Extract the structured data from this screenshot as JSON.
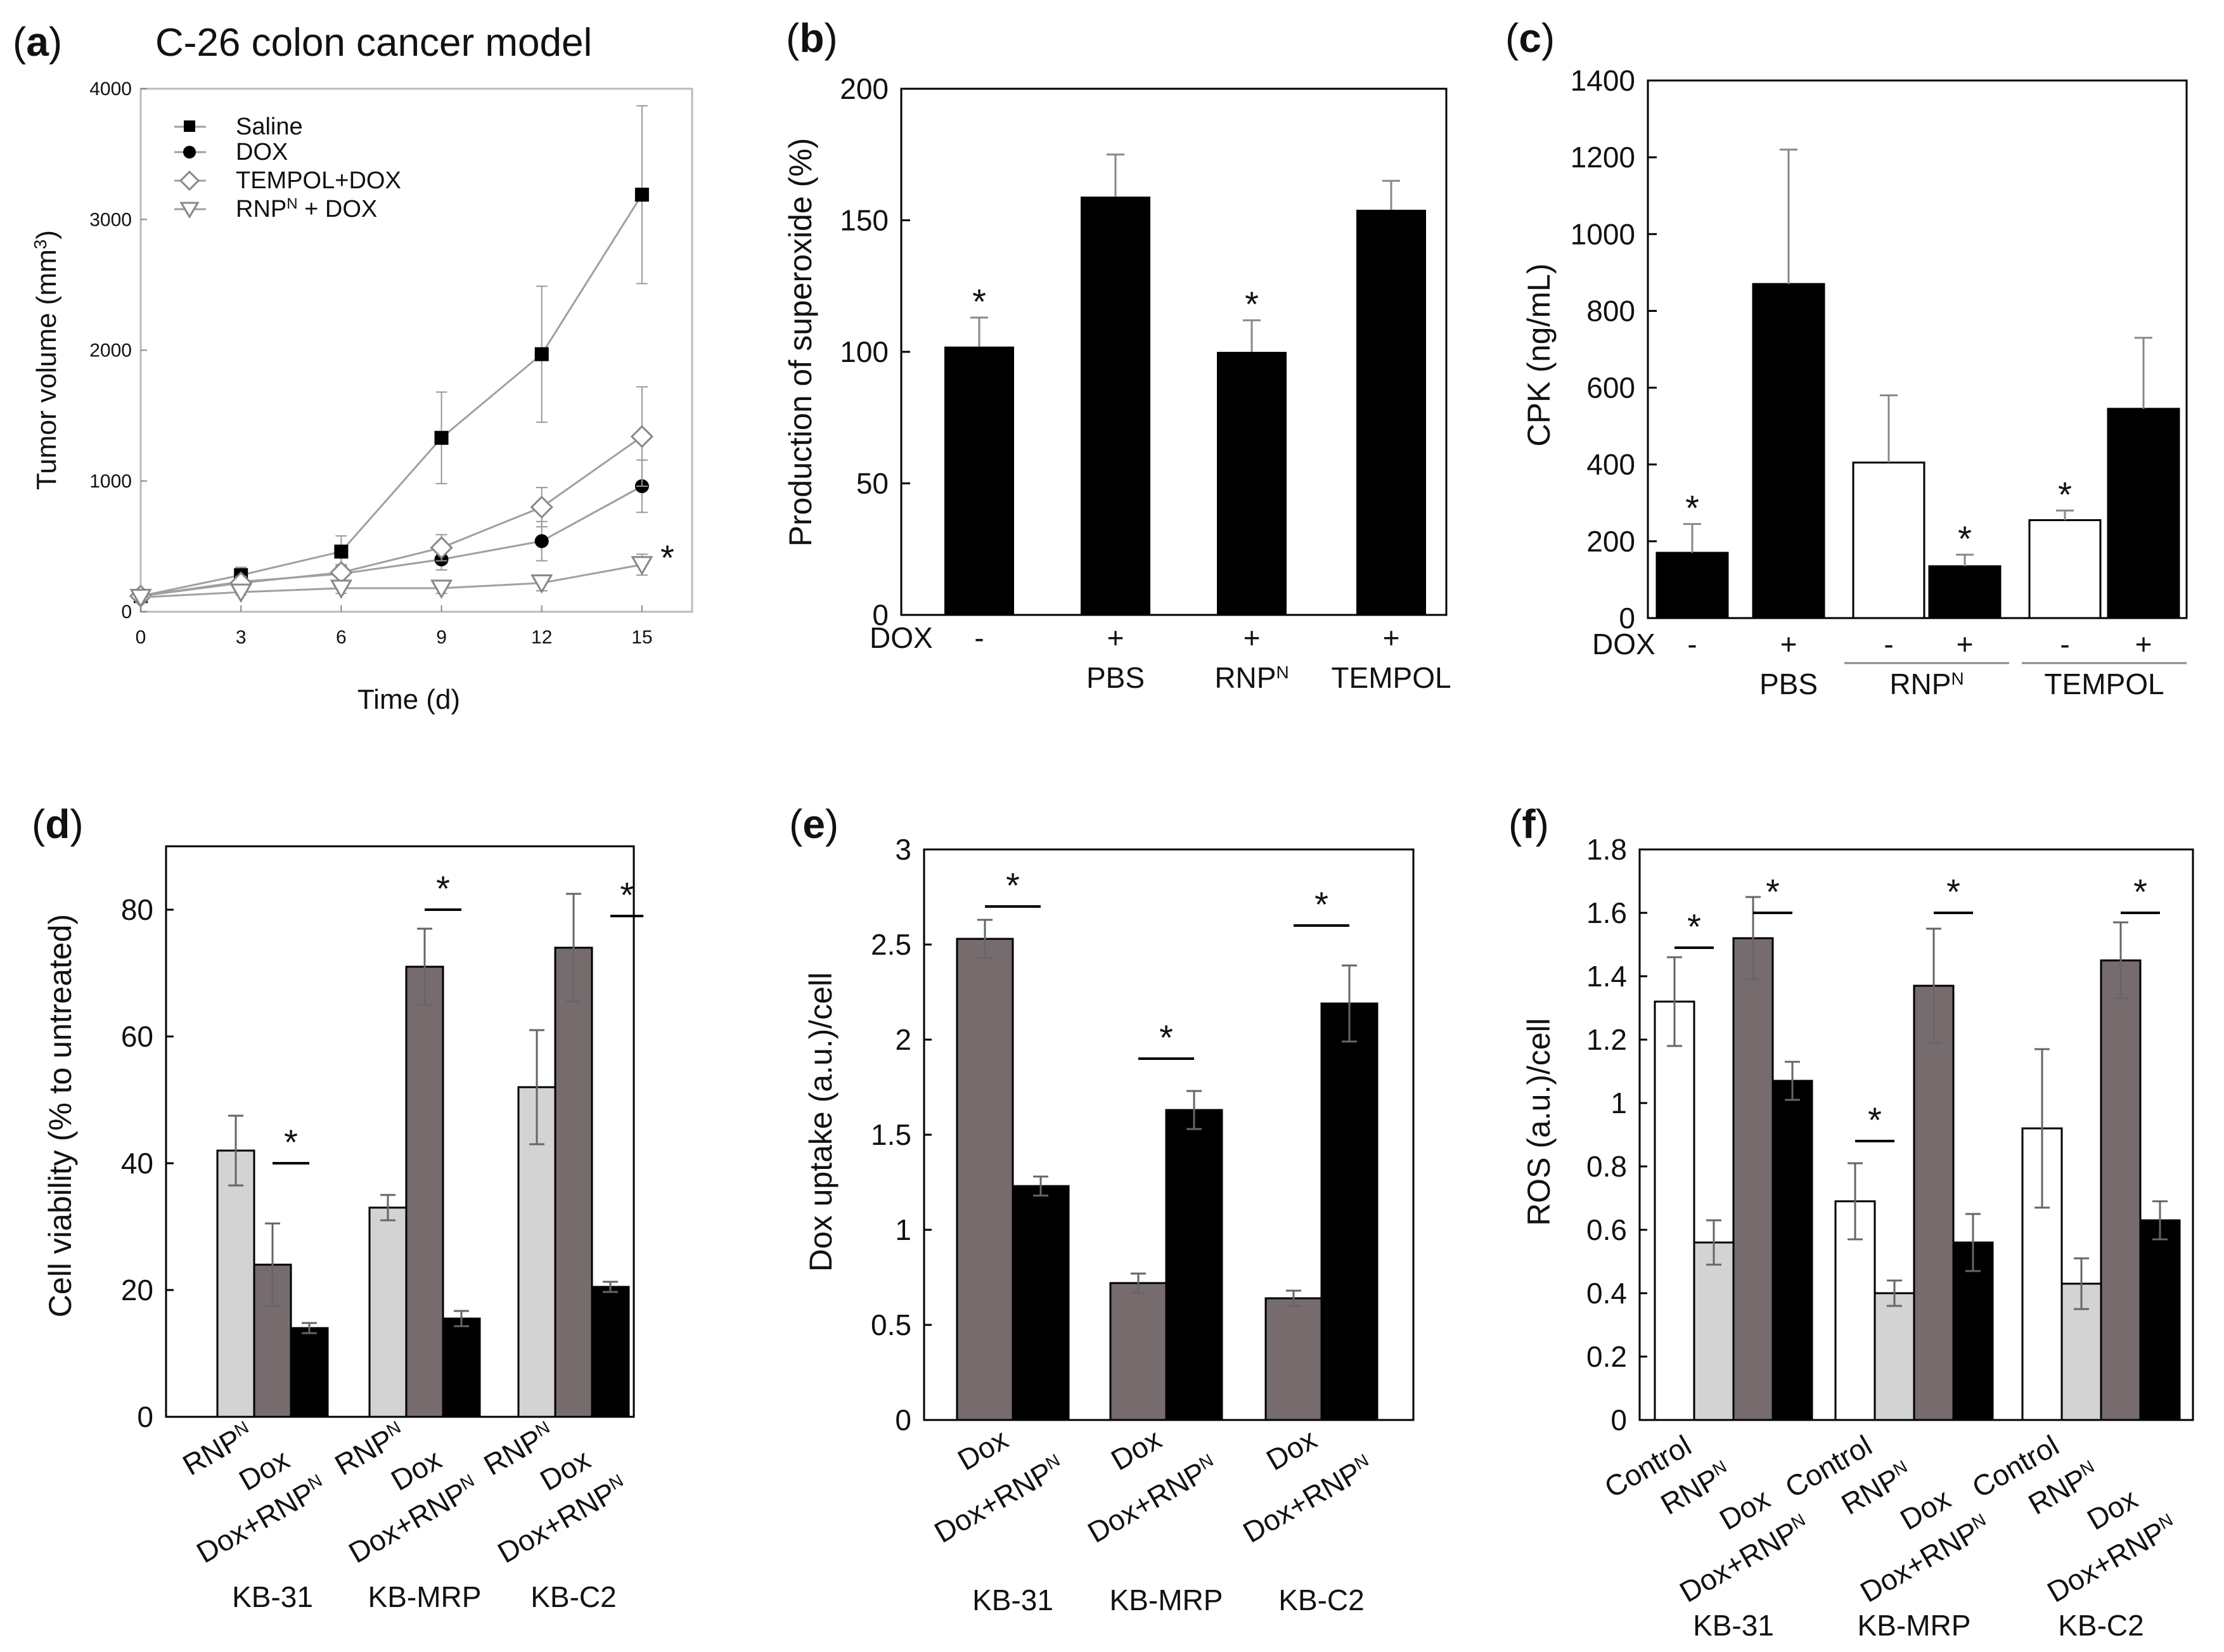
{
  "colors": {
    "black": "#000000",
    "dark_gray": "#766c6e",
    "light_gray": "#d3d3d3",
    "white": "#ffffff",
    "line": "#a0a0a0"
  },
  "panels": {
    "a": {
      "label": "a"
    },
    "b": {
      "label": "b"
    },
    "c": {
      "label": "c"
    },
    "d": {
      "label": "d"
    },
    "e": {
      "label": "e"
    },
    "f": {
      "label": "f"
    }
  },
  "chart_data": [
    {
      "id": "a",
      "type": "line",
      "title": "C-26 colon cancer model",
      "xlabel": "Time (d)",
      "ylabel_main": "Tumor volume (mm",
      "ylabel_sup": "3",
      "ylabel_close": ")",
      "xlim": [
        0,
        16.5
      ],
      "ylim": [
        0,
        4000
      ],
      "xticks": [
        0,
        3,
        6,
        9,
        12,
        15
      ],
      "yticks": [
        0,
        1000,
        2000,
        3000,
        4000
      ],
      "star_label": "*",
      "series": [
        {
          "name": "Saline",
          "marker": "square",
          "x": [
            0,
            3,
            6,
            9,
            12,
            15
          ],
          "y": [
            120,
            280,
            460,
            1330,
            1970,
            3190
          ],
          "err": [
            30,
            60,
            120,
            350,
            520,
            680
          ]
        },
        {
          "name": "DOX",
          "marker": "circle",
          "x": [
            0,
            3,
            6,
            9,
            12,
            15
          ],
          "y": [
            120,
            230,
            290,
            400,
            540,
            960
          ],
          "err": [
            20,
            40,
            60,
            80,
            150,
            200
          ]
        },
        {
          "name": "TEMPOL+DOX",
          "marker": "diamond",
          "x": [
            0,
            3,
            6,
            9,
            12,
            15
          ],
          "y": [
            120,
            220,
            300,
            490,
            800,
            1340
          ],
          "err": [
            20,
            40,
            60,
            100,
            150,
            380
          ]
        },
        {
          "name_main": "RNP",
          "name_sup": "N",
          "name_rest": " + DOX",
          "marker": "triangle",
          "x": [
            0,
            3,
            6,
            9,
            12,
            15
          ],
          "y": [
            110,
            150,
            180,
            180,
            220,
            360
          ],
          "err": [
            20,
            20,
            40,
            40,
            60,
            80
          ]
        }
      ]
    },
    {
      "id": "b",
      "type": "bar",
      "ylabel": "Production of superoxide (%)",
      "ylim": [
        0,
        200
      ],
      "yticks": [
        0,
        50,
        100,
        150,
        200
      ],
      "dox_label": "DOX",
      "categories": [
        "-",
        "+",
        "+",
        "+"
      ],
      "sublabels": [
        {
          "main": "",
          "sup": ""
        },
        {
          "main": "PBS",
          "sup": ""
        },
        {
          "main": "RNP",
          "sup": "N"
        },
        {
          "main": "TEMPOL",
          "sup": ""
        }
      ],
      "values": [
        102,
        159,
        100,
        154
      ],
      "errors": [
        11,
        16,
        12,
        11
      ],
      "stars": [
        "*",
        "",
        "*",
        ""
      ]
    },
    {
      "id": "c",
      "type": "bar",
      "ylabel": "CPK (ng/mL)",
      "ylim": [
        0,
        1400
      ],
      "yticks": [
        0,
        200,
        400,
        600,
        800,
        1000,
        1200,
        1400
      ],
      "dox_label": "DOX",
      "categories": [
        "-",
        "+",
        "-",
        "+",
        "-",
        "+"
      ],
      "values": [
        170,
        870,
        405,
        135,
        255,
        545
      ],
      "errors": [
        75,
        350,
        175,
        30,
        25,
        185
      ],
      "fills": [
        "black",
        "black",
        "white",
        "black",
        "white",
        "black"
      ],
      "stars": [
        "*",
        "",
        "",
        "*",
        "*",
        ""
      ],
      "groups": [
        {
          "main": "PBS",
          "sup": "",
          "underline": false
        },
        {
          "main": "RNP",
          "sup": "N",
          "underline": true
        },
        {
          "main": "TEMPOL",
          "sup": "",
          "underline": true
        }
      ]
    },
    {
      "id": "d",
      "type": "bar",
      "ylabel": "Cell viability (% to untreated)",
      "ylim": [
        0,
        90
      ],
      "yticks": [
        0,
        20,
        40,
        60,
        80
      ],
      "groups": [
        "KB-31",
        "KB-MRP",
        "KB-C2"
      ],
      "series": [
        {
          "label_main": "RNP",
          "label_sup": "N",
          "label_rest": "",
          "fill": "light_gray",
          "values": [
            42,
            33,
            52
          ],
          "errors": [
            5.5,
            2,
            9
          ]
        },
        {
          "label_main": "Dox",
          "label_sup": "",
          "label_rest": "",
          "fill": "dark_gray",
          "values": [
            24,
            71,
            74
          ],
          "errors": [
            6.5,
            6,
            8.5
          ]
        },
        {
          "label_main": "Dox+RNP",
          "label_sup": "N",
          "label_rest": "",
          "fill": "black",
          "values": [
            14,
            15.5,
            20.5
          ],
          "errors": [
            0.8,
            1.2,
            0.8
          ]
        }
      ],
      "significance": [
        {
          "group": 0,
          "from": 1,
          "to": 2,
          "y": 40,
          "label": "*"
        },
        {
          "group": 1,
          "from": 1,
          "to": 2,
          "y": 80,
          "label": "*"
        },
        {
          "group": 2,
          "from": 2,
          "to": 2.9,
          "y": 79,
          "label": "*"
        }
      ]
    },
    {
      "id": "e",
      "type": "bar",
      "ylabel": "Dox uptake (a.u.)/cell",
      "ylim": [
        0,
        3
      ],
      "yticks": [
        0,
        0.5,
        1,
        1.5,
        2,
        2.5,
        3
      ],
      "ytick_labels": [
        "0",
        "0.5",
        "1",
        "1.5",
        "2",
        "2.5",
        "3"
      ],
      "groups": [
        "KB-31",
        "KB-MRP",
        "KB-C2"
      ],
      "series": [
        {
          "label_main": "Dox",
          "label_sup": "",
          "label_rest": "",
          "fill": "dark_gray",
          "values": [
            2.53,
            0.72,
            0.64
          ],
          "errors": [
            0.1,
            0.05,
            0.04
          ]
        },
        {
          "label_main": "Dox+RNP",
          "label_sup": "N",
          "label_rest": "",
          "fill": "black",
          "values": [
            1.23,
            1.63,
            2.19
          ],
          "errors": [
            0.05,
            0.1,
            0.2
          ]
        }
      ],
      "significance": [
        {
          "group": 0,
          "from": 0,
          "to": 1,
          "y": 2.7,
          "label": "*"
        },
        {
          "group": 1,
          "from": 0,
          "to": 1,
          "y": 1.9,
          "label": "*"
        },
        {
          "group": 2,
          "from": 0,
          "to": 1,
          "y": 2.6,
          "label": "*"
        }
      ]
    },
    {
      "id": "f",
      "type": "bar",
      "ylabel": "ROS (a.u.)/cell",
      "ylim": [
        0,
        1.8
      ],
      "yticks": [
        0,
        0.2,
        0.4,
        0.6,
        0.8,
        1,
        1.2,
        1.4,
        1.6,
        1.8
      ],
      "ytick_labels": [
        "0",
        "0.2",
        "0.4",
        "0.6",
        "0.8",
        "1",
        "1.2",
        "1.4",
        "1.6",
        "1.8"
      ],
      "groups": [
        "KB-31",
        "KB-MRP",
        "KB-C2"
      ],
      "series": [
        {
          "label_main": "Control",
          "label_sup": "",
          "label_rest": "",
          "fill": "white",
          "values": [
            1.32,
            0.69,
            0.92
          ],
          "errors": [
            0.14,
            0.12,
            0.25
          ]
        },
        {
          "label_main": "RNP",
          "label_sup": "N",
          "label_rest": "",
          "fill": "light_gray",
          "values": [
            0.56,
            0.4,
            0.43
          ],
          "errors": [
            0.07,
            0.04,
            0.08
          ]
        },
        {
          "label_main": "Dox",
          "label_sup": "",
          "label_rest": "",
          "fill": "dark_gray",
          "values": [
            1.52,
            1.37,
            1.45
          ],
          "errors": [
            0.13,
            0.18,
            0.12
          ]
        },
        {
          "label_main": "Dox+RNP",
          "label_sup": "N",
          "label_rest": "",
          "fill": "black",
          "values": [
            1.07,
            0.56,
            0.63
          ],
          "errors": [
            0.06,
            0.09,
            0.06
          ]
        }
      ],
      "significance": [
        {
          "group": 0,
          "from": 0,
          "to": 1,
          "y": 1.49,
          "label": "*"
        },
        {
          "group": 0,
          "from": 2,
          "to": 3,
          "y": 1.6,
          "label": "*"
        },
        {
          "group": 1,
          "from": 0,
          "to": 1,
          "y": 0.88,
          "label": "*"
        },
        {
          "group": 1,
          "from": 2,
          "to": 3,
          "y": 1.6,
          "label": "*"
        },
        {
          "group": 2,
          "from": 2,
          "to": 3,
          "y": 1.6,
          "label": "*"
        }
      ]
    }
  ]
}
